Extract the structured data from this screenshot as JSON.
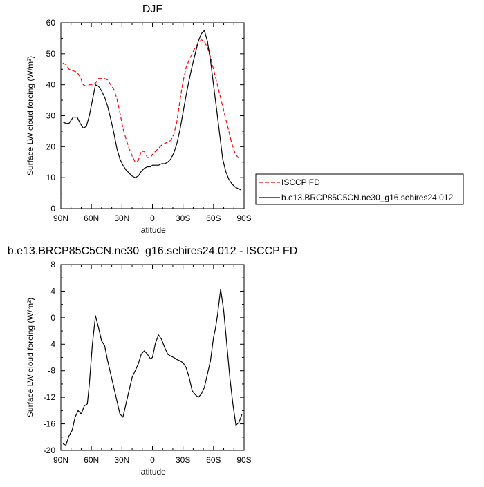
{
  "chart_data": [
    {
      "type": "line",
      "title": "DJF",
      "xlabel": "latitude",
      "ylabel": "Surface LW cloud forcing (W/m²)",
      "ylim": [
        0,
        60
      ],
      "xlim": [
        90,
        -90
      ],
      "xticks": [
        90,
        60,
        30,
        0,
        -30,
        -60,
        -90
      ],
      "xtick_labels": [
        "90N",
        "60N",
        "30N",
        "0",
        "30S",
        "60S",
        "90S"
      ],
      "yticks": [
        0,
        10,
        20,
        30,
        40,
        50,
        60
      ],
      "ytick_labels": [
        "0",
        "10",
        "20",
        "30",
        "40",
        "50",
        "60"
      ],
      "legend_position": "right",
      "series": [
        {
          "name": "ISCCP FD",
          "color": "#ff0000",
          "dash": true,
          "x": [
            88,
            85,
            82,
            78,
            74,
            71,
            68,
            65,
            62,
            59,
            56,
            53,
            50,
            47,
            44,
            41,
            38,
            35,
            32,
            29,
            26,
            23,
            20,
            17,
            14,
            11,
            8,
            5,
            2,
            0,
            -3,
            -6,
            -9,
            -12,
            -15,
            -18,
            -21,
            -24,
            -27,
            -30,
            -33,
            -36,
            -39,
            -42,
            -45,
            -48,
            -51,
            -54,
            -57,
            -60,
            -63,
            -66,
            -69,
            -72,
            -75,
            -78,
            -81,
            -84,
            -87
          ],
          "y": [
            47,
            46.5,
            45,
            44.5,
            44,
            42.5,
            40,
            39.5,
            40,
            40,
            40.5,
            42,
            42,
            42,
            41.5,
            40,
            38.5,
            35.5,
            31,
            26,
            22.5,
            19.5,
            17,
            15,
            15.5,
            18.5,
            18.5,
            16.5,
            16.5,
            17.5,
            18.5,
            19.5,
            20.5,
            21,
            21.5,
            22,
            24,
            28,
            35,
            41,
            45.5,
            48,
            50,
            52,
            53.5,
            54.5,
            54,
            52,
            49,
            45,
            41,
            37,
            33,
            29,
            25,
            21,
            18,
            16.5,
            16
          ]
        },
        {
          "name": "b.e13.BRCP85C5CN.ne30_g16.sehires24.012",
          "color": "#000000",
          "dash": false,
          "x": [
            88,
            85,
            82,
            78,
            74,
            71,
            68,
            65,
            62,
            59,
            56,
            53,
            50,
            47,
            44,
            41,
            38,
            35,
            32,
            29,
            26,
            23,
            20,
            17,
            14,
            11,
            8,
            5,
            2,
            0,
            -3,
            -6,
            -9,
            -12,
            -15,
            -18,
            -21,
            -24,
            -27,
            -30,
            -33,
            -36,
            -39,
            -42,
            -45,
            -48,
            -51,
            -54,
            -57,
            -60,
            -63,
            -66,
            -69,
            -72,
            -75,
            -78,
            -81,
            -84,
            -87
          ],
          "y": [
            28,
            27.5,
            27.5,
            29.5,
            29.5,
            27.5,
            26,
            26.5,
            30,
            35,
            40,
            39.5,
            38,
            36,
            33,
            29,
            24.5,
            19.5,
            16,
            14,
            12.5,
            11.5,
            10.5,
            10,
            10.5,
            12,
            13,
            13.5,
            13.5,
            14,
            14,
            14,
            14.5,
            14.5,
            15,
            16,
            18,
            21,
            25.5,
            31,
            36.5,
            41.5,
            46,
            50,
            54,
            56.5,
            57.5,
            54,
            48,
            40,
            32,
            24,
            16,
            12,
            9.5,
            8,
            7,
            6.5,
            6
          ]
        }
      ]
    },
    {
      "type": "line",
      "title": "b.e13.BRCP85C5CN.ne30_g16.sehires24.012 - ISCCP FD",
      "xlabel": "latitude",
      "ylabel": "Surface LW cloud forcing (W/m²)",
      "ylim": [
        -20,
        8
      ],
      "xlim": [
        90,
        -90
      ],
      "xticks": [
        90,
        60,
        30,
        0,
        -30,
        -60,
        -90
      ],
      "xtick_labels": [
        "90N",
        "60N",
        "30N",
        "0",
        "30S",
        "60S",
        "90S"
      ],
      "yticks": [
        -20,
        -16,
        -12,
        -8,
        -4,
        0,
        4,
        8
      ],
      "ytick_labels": [
        "-20",
        "-16",
        "-12",
        "-8",
        "-4",
        "0",
        "4",
        "8"
      ],
      "series": [
        {
          "color": "#000000",
          "dash": false,
          "x": [
            88,
            85,
            82,
            79,
            76,
            73,
            70,
            67,
            64,
            62,
            59,
            56,
            53,
            50,
            47,
            44,
            41,
            38,
            35,
            32,
            29,
            26,
            23,
            20,
            17,
            14,
            11,
            8,
            5,
            2,
            0,
            -3,
            -6,
            -9,
            -12,
            -15,
            -18,
            -21,
            -24,
            -27,
            -30,
            -33,
            -36,
            -39,
            -42,
            -45,
            -48,
            -51,
            -54,
            -57,
            -60,
            -62,
            -64,
            -67,
            -70,
            -73,
            -76,
            -79,
            -82,
            -85,
            -88
          ],
          "y": [
            -19,
            -19.2,
            -17.8,
            -17,
            -15,
            -14,
            -14.5,
            -13.3,
            -13,
            -10,
            -4,
            0.3,
            -1.5,
            -3.5,
            -4.2,
            -6.5,
            -8.5,
            -10.5,
            -12.5,
            -14.5,
            -15,
            -13,
            -11,
            -9,
            -8,
            -7,
            -5.5,
            -5,
            -5.5,
            -6.2,
            -6,
            -3.8,
            -2.6,
            -3.3,
            -4.5,
            -5.5,
            -5.8,
            -6.0,
            -6.3,
            -6.5,
            -6.8,
            -7.5,
            -9.0,
            -11.0,
            -11.6,
            -12.0,
            -11.5,
            -10.5,
            -8.5,
            -6.5,
            -3.0,
            -1.5,
            0.5,
            4.3,
            1.0,
            -4.0,
            -9.0,
            -13.0,
            -16.2,
            -15.8,
            -14.5
          ]
        }
      ]
    }
  ]
}
